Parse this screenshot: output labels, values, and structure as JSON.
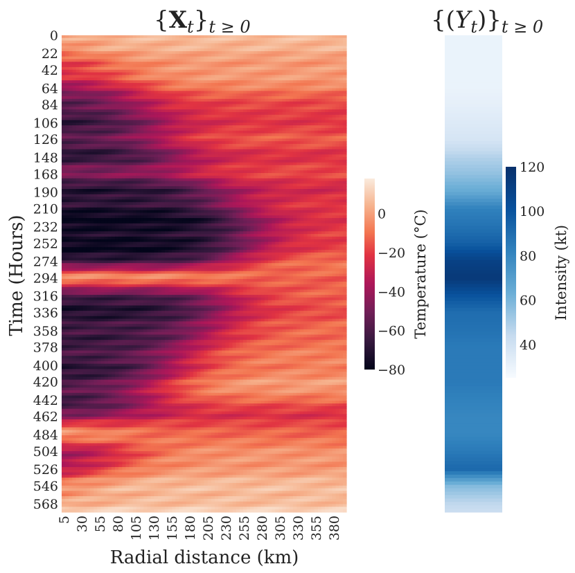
{
  "chart_data": [
    {
      "type": "heatmap",
      "title": "{X_t}_{t≥0}",
      "title_main": "{",
      "title_bold": "X",
      "title_sub": "t",
      "title_close": "}",
      "title_sub2": "t ≥ 0",
      "xlabel": "Radial distance (km)",
      "ylabel": "Time (Hours)",
      "x_ticks": [
        "5",
        "30",
        "55",
        "80",
        "105",
        "130",
        "155",
        "180",
        "205",
        "230",
        "255",
        "280",
        "305",
        "330",
        "355",
        "380"
      ],
      "y_ticks": [
        "0",
        "22",
        "42",
        "64",
        "84",
        "106",
        "126",
        "148",
        "168",
        "190",
        "210",
        "232",
        "252",
        "274",
        "294",
        "316",
        "336",
        "358",
        "378",
        "400",
        "420",
        "442",
        "462",
        "484",
        "504",
        "526",
        "546",
        "568"
      ],
      "x_range_km": [
        5,
        400
      ],
      "y_range_hours": [
        0,
        578
      ],
      "colormap": "rocket",
      "colorbar": {
        "label": "Temperature (°C)",
        "ticks": [
          "0",
          "−20",
          "−40",
          "−60",
          "−80"
        ],
        "tick_values": [
          0,
          -20,
          -40,
          -60,
          -80
        ],
        "range": [
          -80,
          18
        ]
      },
      "time_profile_hours": [
        0,
        22,
        42,
        64,
        84,
        106,
        126,
        148,
        168,
        190,
        210,
        232,
        252,
        274,
        294,
        316,
        336,
        358,
        378,
        400,
        420,
        442,
        462,
        484,
        504,
        526,
        546,
        568,
        578
      ],
      "inner_core_temperature_c": [
        -5,
        -12,
        -25,
        -40,
        -62,
        -64,
        -60,
        -66,
        -48,
        -70,
        -72,
        -78,
        -76,
        -68,
        5,
        -66,
        -68,
        -66,
        -60,
        -70,
        -60,
        -64,
        -48,
        8,
        -45,
        -35,
        -12,
        3,
        5
      ],
      "outer_edge_temperature_c": [
        5,
        2,
        -2,
        -5,
        -20,
        -20,
        -15,
        -22,
        -18,
        -25,
        -20,
        -20,
        -18,
        -10,
        -12,
        -14,
        -15,
        -12,
        -8,
        -8,
        0,
        -10,
        -25,
        -10,
        -5,
        0,
        5,
        8,
        10
      ],
      "cold_region_extent_km": [
        30,
        40,
        80,
        100,
        110,
        130,
        140,
        160,
        180,
        220,
        240,
        270,
        260,
        240,
        230,
        230,
        220,
        210,
        180,
        160,
        140,
        120,
        110,
        60,
        100,
        60,
        40,
        20,
        20
      ]
    },
    {
      "type": "heatmap",
      "title": "{(Y_t)}_{t≥0}",
      "title_main": "{(",
      "title_var": "Y",
      "title_sub": "t",
      "title_close": ")}",
      "title_sub2": "t ≥ 0",
      "colormap": "Blues",
      "colorbar": {
        "label": "Intensity (kt)",
        "ticks": [
          "120",
          "100",
          "80",
          "60",
          "40"
        ],
        "tick_values": [
          120,
          100,
          80,
          60,
          40
        ],
        "range": [
          25,
          120
        ]
      },
      "time_hours": [
        0,
        22,
        42,
        64,
        84,
        106,
        126,
        148,
        168,
        190,
        210,
        232,
        252,
        274,
        294,
        316,
        336,
        358,
        378,
        400,
        420,
        442,
        462,
        484,
        504,
        526,
        546,
        568,
        578
      ],
      "intensity_kt": [
        30,
        30,
        30,
        30,
        32,
        35,
        38,
        48,
        55,
        65,
        82,
        88,
        95,
        110,
        115,
        100,
        90,
        88,
        85,
        85,
        85,
        82,
        80,
        80,
        85,
        92,
        58,
        45,
        42
      ]
    }
  ]
}
